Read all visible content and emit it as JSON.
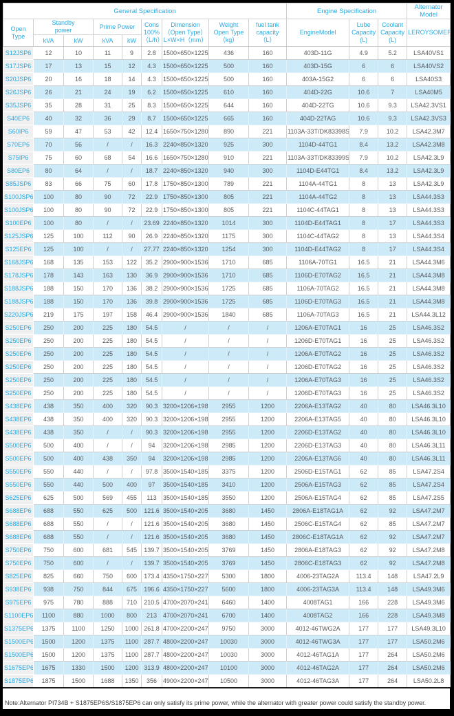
{
  "colors": {
    "accent_cyan": "#29ABE2",
    "stripe_blue": "#CDEAF9",
    "first_column_bg": "#F0F0F0",
    "data_text": "#58595B",
    "frame": "#000000"
  },
  "header": {
    "group_general": "General Specification",
    "group_engine": "Engine Specification",
    "group_alternator": "Alternator Model",
    "open_type": "Open Type",
    "standby_power": "Standby\npower",
    "prime_power": "Prime Power",
    "standby_kva": "kVA",
    "standby_kw": "kW",
    "prime_kva": "kVA",
    "prime_kw": "kW",
    "cons": "Cons\n100%\n（L/h）",
    "dimension": "Dimension\n（Open Type）\nL×W×H（mm）",
    "weight": "Weight\nOpen Type\n（kg）",
    "fuel": "fuel tank\ncapacity\n（L）",
    "engine_model": "EngineModel",
    "lube": "Lube\nCapacity\n(L)",
    "coolant": "Coolant\nCapacity\n(L)",
    "alternator_brand": "LEROYSOMER"
  },
  "columns": [
    "open-type",
    "standby-kva",
    "standby-kw",
    "prime-kva",
    "prime-kw",
    "cons-100",
    "dimension",
    "weight",
    "fuel-capacity",
    "engine-model",
    "lube-capacity",
    "coolant-capacity",
    "alternator-model"
  ],
  "rows": [
    [
      "S12JSP6",
      "12",
      "10",
      "11",
      "9",
      "2.8",
      "1500×650×1225",
      "436",
      "160",
      "403D-11G",
      "4.9",
      "5.2",
      "LSA40VS1"
    ],
    [
      "S17JSP6",
      "17",
      "13",
      "15",
      "12",
      "4.3",
      "1500×650×1225",
      "500",
      "160",
      "403D-15G",
      "6",
      "6",
      "LSA40VS2"
    ],
    [
      "S20JSP6",
      "20",
      "16",
      "18",
      "14",
      "4.3",
      "1500×650×1225",
      "500",
      "160",
      "403A-15G2",
      "6",
      "6",
      "LSA40S3"
    ],
    [
      "S26JSP6",
      "26",
      "21",
      "24",
      "19",
      "6.2",
      "1500×650×1225",
      "610",
      "160",
      "404D-22G",
      "10.6",
      "7",
      "LSA40M5"
    ],
    [
      "S35JSP6",
      "35",
      "28",
      "31",
      "25",
      "8.3",
      "1500×650×1225",
      "644",
      "160",
      "404D-22TG",
      "10.6",
      "9.3",
      "LSA42.3VS1"
    ],
    [
      "S40EP6",
      "40",
      "32",
      "36",
      "29",
      "8.7",
      "1500×650×1225",
      "665",
      "160",
      "404D-22TAG",
      "10.6",
      "9.3",
      "LSA42.3VS3"
    ],
    [
      "S60IP6",
      "59",
      "47",
      "53",
      "42",
      "12.4",
      "1650×750×1280",
      "890",
      "221",
      "1103A-33T/DK83398S",
      "7.9",
      "10.2",
      "LSA42.3M7"
    ],
    [
      "S70EP6",
      "70",
      "56",
      "/",
      "/",
      "16.3",
      "2240×850×1320",
      "925",
      "300",
      "1104D-44TG1",
      "8.4",
      "13.2",
      "LSA42.3M8"
    ],
    [
      "S75IP6",
      "75",
      "60",
      "68",
      "54",
      "16.6",
      "1650×750×1280",
      "910",
      "221",
      "1103A-33T/DK83399S",
      "7.9",
      "10.2",
      "LSA42.3L9"
    ],
    [
      "S80EP6",
      "80",
      "64",
      "/",
      "/",
      "18.7",
      "2240×850×1320",
      "940",
      "300",
      "1104D-E44TG1",
      "8.4",
      "13.2",
      "LSA42.3L9"
    ],
    [
      "S85JSP6",
      "83",
      "66",
      "75",
      "60",
      "17.8",
      "1750×850×1300",
      "789",
      "221",
      "1104A-44TG1",
      "8",
      "13",
      "LSA42.3L9"
    ],
    [
      "S100JSP6",
      "100",
      "80",
      "90",
      "72",
      "22.9",
      "1750×850×1300",
      "805",
      "221",
      "1104A-44TG2",
      "8",
      "13",
      "LSA44.3S3"
    ],
    [
      "S100JSP6",
      "100",
      "80",
      "90",
      "72",
      "22.9",
      "1750×850×1300",
      "805",
      "221",
      "1104C-44TAG1",
      "8",
      "13",
      "LSA44.3S3"
    ],
    [
      "S100EP6",
      "100",
      "80",
      "/",
      "/",
      "23.69",
      "2240×850×1320",
      "1014",
      "300",
      "1104D-E44TAG1",
      "8",
      "17",
      "LSA44.3S3"
    ],
    [
      "S125JSP6",
      "125",
      "100",
      "112",
      "90",
      "26.9",
      "2240×850×1320",
      "1175",
      "300",
      "1104C-44TAG2",
      "8",
      "13",
      "LSA44.3S4"
    ],
    [
      "S125EP6",
      "125",
      "100",
      "/",
      "/",
      "27.77",
      "2240×850×1320",
      "1254",
      "300",
      "1104D-E44TAG2",
      "8",
      "17",
      "LSA44.3S4"
    ],
    [
      "S168JSP6",
      "168",
      "135",
      "153",
      "122",
      "35.2",
      "2900×900×1536",
      "1710",
      "685",
      "1106A-70TG1",
      "16.5",
      "21",
      "LSA44.3M6"
    ],
    [
      "S178JSP6",
      "178",
      "143",
      "163",
      "130",
      "36.9",
      "2900×900×1536",
      "1710",
      "685",
      "1106D-E70TAG2",
      "16.5",
      "21",
      "LSA44.3M8"
    ],
    [
      "S188JSP6",
      "188",
      "150",
      "170",
      "136",
      "38.2",
      "2900×900×1536",
      "1725",
      "685",
      "1106A-70TAG2",
      "16.5",
      "21",
      "LSA44.3M8"
    ],
    [
      "S188JSP6",
      "188",
      "150",
      "170",
      "136",
      "39.8",
      "2900×900×1536",
      "1725",
      "685",
      "1106D-E70TAG3",
      "16.5",
      "21",
      "LSA44.3M8"
    ],
    [
      "S220JSP6",
      "219",
      "175",
      "197",
      "158",
      "46.4",
      "2900×900×1536",
      "1840",
      "685",
      "1106A-70TAG3",
      "16.5",
      "21",
      "LSA44.3L12"
    ],
    [
      "S250EP6",
      "250",
      "200",
      "225",
      "180",
      "54.5",
      "/",
      "/",
      "/",
      "1206A-E70TAG1",
      "16",
      "25",
      "LSA46.3S2"
    ],
    [
      "S250EP6",
      "250",
      "200",
      "225",
      "180",
      "54.5",
      "/",
      "/",
      "/",
      "1206D-E70TAG1",
      "16",
      "25",
      "LSA46.3S2"
    ],
    [
      "S250EP6",
      "250",
      "200",
      "225",
      "180",
      "54.5",
      "/",
      "/",
      "/",
      "1206A-E70TAG2",
      "16",
      "25",
      "LSA46.3S2"
    ],
    [
      "S250EP6",
      "250",
      "200",
      "225",
      "180",
      "54.5",
      "/",
      "/",
      "/",
      "1206D-E70TAG2",
      "16",
      "25",
      "LSA46.3S2"
    ],
    [
      "S250EP6",
      "250",
      "200",
      "225",
      "180",
      "54.5",
      "/",
      "/",
      "/",
      "1206A-E70TAG3",
      "16",
      "25",
      "LSA46.3S2"
    ],
    [
      "S250EP6",
      "250",
      "200",
      "225",
      "180",
      "54.5",
      "/",
      "/",
      "/",
      "1206D-E70TAG3",
      "16",
      "25",
      "LSA46.3S2"
    ],
    [
      "S438EP6",
      "438",
      "350",
      "400",
      "320",
      "90.3",
      "3200×1206×1980",
      "2955",
      "1200",
      "2206A-E13TAG2",
      "40",
      "80",
      "LSA46.3L10"
    ],
    [
      "S438EP6",
      "438",
      "350",
      "400",
      "320",
      "90.3",
      "3200×1206×1980",
      "2955",
      "1200",
      "2206A-E13TAG5",
      "40",
      "80",
      "LSA46.3L10"
    ],
    [
      "S438EP6",
      "438",
      "350",
      "/",
      "/",
      "90.3",
      "3200×1206×1980",
      "2955",
      "1200",
      "2206D-E13TAG2",
      "40",
      "80",
      "LSA46.3L10"
    ],
    [
      "S500EP6",
      "500",
      "400",
      "/",
      "/",
      "94",
      "3200×1206×1980",
      "2985",
      "1200",
      "2206D-E13TAG3",
      "40",
      "80",
      "LSA46.3L11"
    ],
    [
      "S500EP6",
      "500",
      "400",
      "438",
      "350",
      "94",
      "3200×1206×1980",
      "2985",
      "1200",
      "2206A-E13TAG6",
      "40",
      "80",
      "LSA46.3L11"
    ],
    [
      "S550EP6",
      "550",
      "440",
      "/",
      "/",
      "97.8",
      "3500×1540×1850",
      "3375",
      "1200",
      "2506D-E15TAG1",
      "62",
      "85",
      "LSA47.2S4"
    ],
    [
      "S550EP6",
      "550",
      "440",
      "500",
      "400",
      "97",
      "3500×1540×1850",
      "3410",
      "1200",
      "2506A-E15TAG3",
      "62",
      "85",
      "LSA47.2S4"
    ],
    [
      "S625EP6",
      "625",
      "500",
      "569",
      "455",
      "113",
      "3500×1540×1850",
      "3550",
      "1200",
      "2506A-E15TAG4",
      "62",
      "85",
      "LSA47.2S5"
    ],
    [
      "S688EP6",
      "688",
      "550",
      "625",
      "500",
      "121.6",
      "3500×1540×2050",
      "3680",
      "1450",
      "2806A-E18TAG1A",
      "62",
      "92",
      "LSA47.2M7"
    ],
    [
      "S688EP6",
      "688",
      "550",
      "/",
      "/",
      "121.6",
      "3500×1540×2050",
      "3680",
      "1450",
      "2506C-E15TAG4",
      "62",
      "85",
      "LSA47.2M7"
    ],
    [
      "S688EP6",
      "688",
      "550",
      "/",
      "/",
      "121.6",
      "3500×1540×2050",
      "3680",
      "1450",
      "2806C-E18TAG1A",
      "62",
      "92",
      "LSA47.2M7"
    ],
    [
      "S750EP6",
      "750",
      "600",
      "681",
      "545",
      "139.7",
      "3500×1540×2050",
      "3769",
      "1450",
      "2806A-E18TAG3",
      "62",
      "92",
      "LSA47.2M8"
    ],
    [
      "S750EP6",
      "750",
      "600",
      "/",
      "/",
      "139.7",
      "3500×1540×2050",
      "3769",
      "1450",
      "2806C-E18TAG3",
      "62",
      "92",
      "LSA47.2M8"
    ],
    [
      "S825EP6",
      "825",
      "660",
      "750",
      "600",
      "173.4",
      "4350×1750×2270",
      "5300",
      "1800",
      "4006-23TAG2A",
      "113.4",
      "148",
      "LSA47.2L9"
    ],
    [
      "S938EP6",
      "938",
      "750",
      "844",
      "675",
      "196.6",
      "4350×1750×2270",
      "5600",
      "1800",
      "4006-23TAG3A",
      "113.4",
      "148",
      "LSA49.3M6"
    ],
    [
      "S975EP6",
      "975",
      "780",
      "888",
      "710",
      "210.5",
      "4700×2070×2414",
      "6460",
      "1400",
      "4008TAG1",
      "166",
      "228",
      "LSA49.3M6"
    ],
    [
      "S1100EP6",
      "1100",
      "880",
      "1000",
      "800",
      "213",
      "4700×2070×2414",
      "6700",
      "1400",
      "4008TAG2",
      "166",
      "228",
      "LSA49.3M8"
    ],
    [
      "S1375EP6",
      "1375",
      "1100",
      "1250",
      "1000",
      "261.8",
      "4700×2200×2477",
      "9750",
      "3000",
      "4012-46TWG2A",
      "177",
      "177",
      "LSA49.3L10"
    ],
    [
      "S1500EP6",
      "1500",
      "1200",
      "1375",
      "1100",
      "287.7",
      "4800×2200×2477",
      "10030",
      "3000",
      "4012-46TWG3A",
      "177",
      "177",
      "LSA50.2M6"
    ],
    [
      "S1500EP6",
      "1500",
      "1200",
      "1375",
      "1100",
      "287.7",
      "4800×2200×2477",
      "10030",
      "3000",
      "4012-46TAG1A",
      "177",
      "264",
      "LSA50.2M6"
    ],
    [
      "S1675EP6",
      "1675",
      "1330",
      "1500",
      "1200",
      "313.9",
      "4800×2200×2477",
      "10100",
      "3000",
      "4012-46TAG2A",
      "177",
      "264",
      "LSA50.2M6"
    ],
    [
      "S1875EP6",
      "1875",
      "1500",
      "1688",
      "1350",
      "356",
      "4900×2200×2477",
      "10500",
      "3000",
      "4012-46TAG3A",
      "177",
      "264",
      "LSA50.2L8"
    ]
  ],
  "note": "Note:Alternator PI734B + S1875EP6S/S1875EP6 can only satisfy its prime power, while the alternator with greater power could satisfy the standby power."
}
